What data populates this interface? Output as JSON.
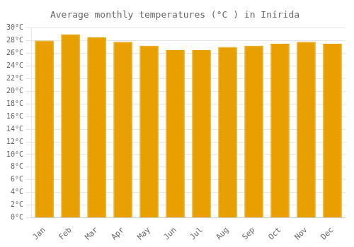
{
  "chart_data": {
    "type": "bar",
    "title": "Average monthly temperatures (°C ) in Inírida",
    "categories": [
      "Jan",
      "Feb",
      "Mar",
      "Apr",
      "May",
      "Jun",
      "Jul",
      "Aug",
      "Sep",
      "Oct",
      "Nov",
      "Dec"
    ],
    "values": [
      28.0,
      29.0,
      28.5,
      27.8,
      27.2,
      26.5,
      26.5,
      27.0,
      27.2,
      27.5,
      27.8,
      27.5
    ],
    "color": "#E8A000",
    "ylim": [
      0,
      30
    ],
    "yticks": [
      {
        "value": 0,
        "label": "0°C"
      },
      {
        "value": 2,
        "label": "2°C"
      },
      {
        "value": 4,
        "label": "4°C"
      },
      {
        "value": 6,
        "label": "6°C"
      },
      {
        "value": 8,
        "label": "8°C"
      },
      {
        "value": 10,
        "label": "10°C"
      },
      {
        "value": 12,
        "label": "12°C"
      },
      {
        "value": 14,
        "label": "14°C"
      },
      {
        "value": 16,
        "label": "16°C"
      },
      {
        "value": 18,
        "label": "18°C"
      },
      {
        "value": 20,
        "label": "20°C"
      },
      {
        "value": 22,
        "label": "22°C"
      },
      {
        "value": 24,
        "label": "24°C"
      },
      {
        "value": 26,
        "label": "26°C"
      },
      {
        "value": 28,
        "label": "28°C"
      },
      {
        "value": 30,
        "label": "30°C"
      }
    ],
    "grid": "y"
  }
}
